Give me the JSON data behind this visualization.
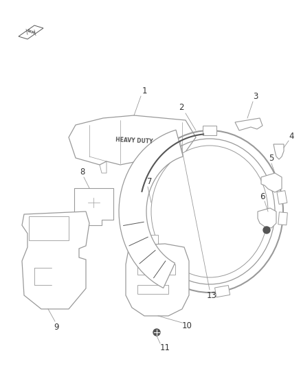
{
  "background_color": "#ffffff",
  "fig_width": 4.38,
  "fig_height": 5.33,
  "dpi": 100,
  "lc": "#999999",
  "dc": "#555555",
  "lw": 0.8
}
